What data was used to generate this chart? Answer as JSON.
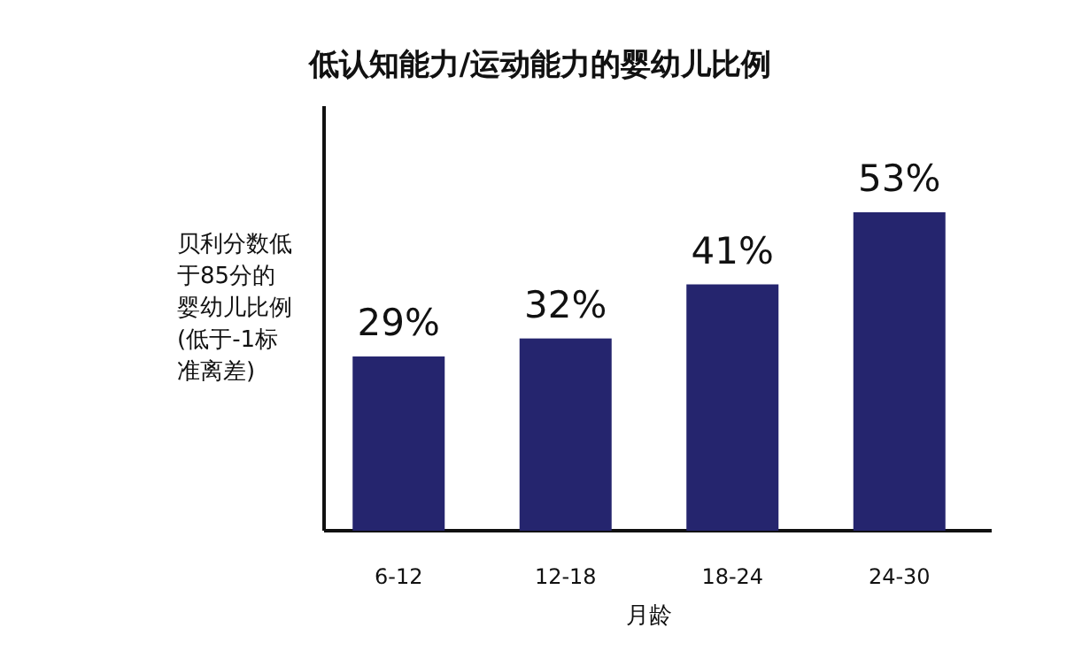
{
  "chart_data": {
    "type": "bar",
    "title": "低认知能力/运动能力的婴幼儿比例",
    "categories": [
      "6-12",
      "12-18",
      "18-24",
      "24-30"
    ],
    "values": [
      29,
      32,
      41,
      53
    ],
    "value_labels": [
      "29%",
      "32%",
      "41%",
      "53%"
    ],
    "color": "#25256e",
    "xlabel": "月龄",
    "ylabel": "贝利分数低于85分的婴幼儿比例(低于-1标准离差)"
  }
}
